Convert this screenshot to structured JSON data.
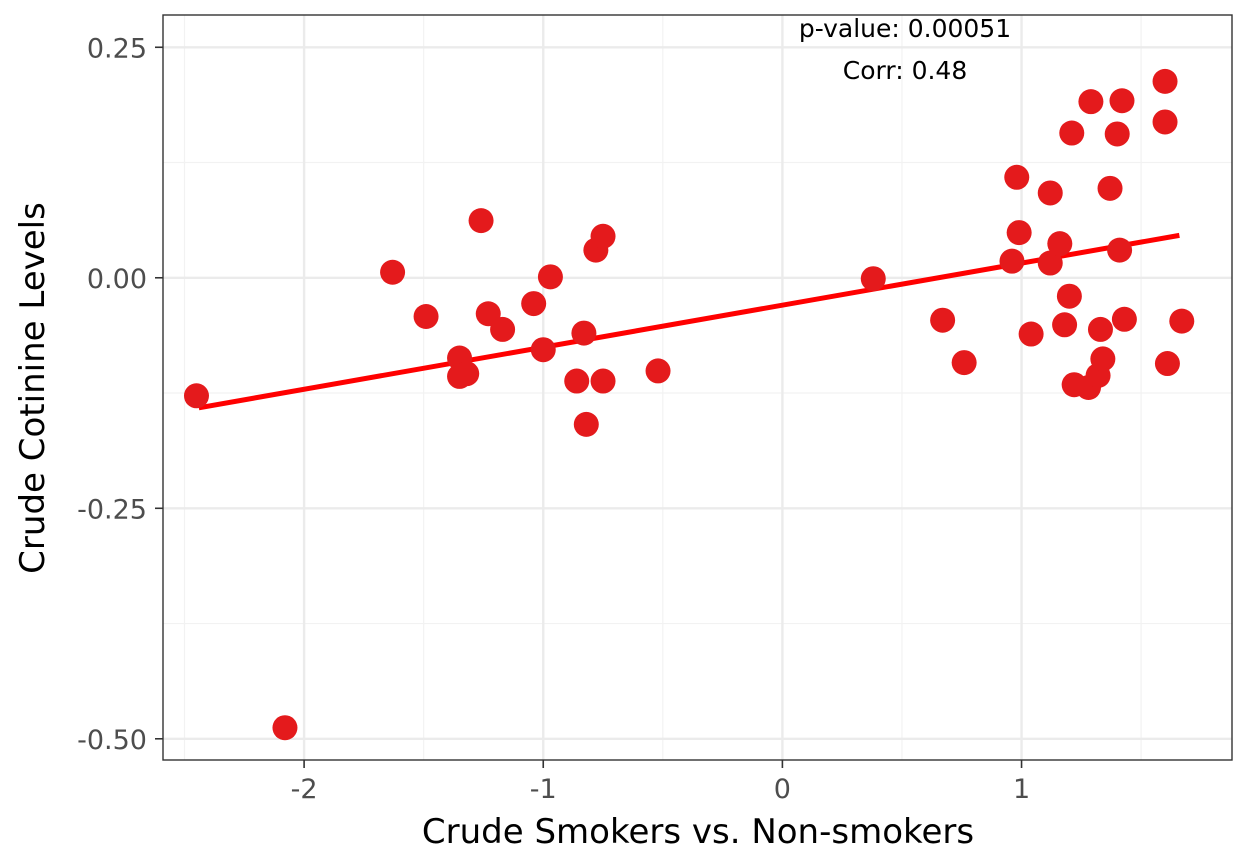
{
  "chart_data": {
    "type": "scatter",
    "title": "",
    "xlabel": "Crude Smokers vs. Non-smokers",
    "ylabel": "Crude Cotinine Levels",
    "xlim": [
      -2.59,
      1.88
    ],
    "ylim": [
      -0.523,
      0.285
    ],
    "x_ticks": [
      -2,
      -1,
      0,
      1
    ],
    "x_tick_labels": [
      "-2",
      "-1",
      "0",
      "1"
    ],
    "y_ticks": [
      0.25,
      0.0,
      -0.25,
      -0.5
    ],
    "y_tick_labels": [
      "0.25",
      "0.00",
      "-0.25",
      "-0.50"
    ],
    "grid": true,
    "legend": "none",
    "point_color": "#e41a1c",
    "line_color": "#ff0000",
    "annotations": {
      "p_value": "p-value: 0.00051",
      "corr": "Corr: 0.48"
    },
    "regression_line": {
      "x": [
        -2.44,
        1.66
      ],
      "y": [
        -0.141,
        0.046
      ]
    },
    "points": [
      {
        "x": -2.45,
        "y": -0.128
      },
      {
        "x": -2.08,
        "y": -0.488
      },
      {
        "x": -1.63,
        "y": 0.006
      },
      {
        "x": -1.49,
        "y": -0.042
      },
      {
        "x": -1.26,
        "y": 0.062
      },
      {
        "x": -1.35,
        "y": -0.087
      },
      {
        "x": -1.35,
        "y": -0.107
      },
      {
        "x": -1.32,
        "y": -0.104
      },
      {
        "x": -1.23,
        "y": -0.039
      },
      {
        "x": -1.17,
        "y": -0.056
      },
      {
        "x": -1.04,
        "y": -0.028
      },
      {
        "x": -1.0,
        "y": -0.078
      },
      {
        "x": -0.97,
        "y": 0.001
      },
      {
        "x": -0.86,
        "y": -0.112
      },
      {
        "x": -0.83,
        "y": -0.06
      },
      {
        "x": -0.82,
        "y": -0.159
      },
      {
        "x": -0.78,
        "y": 0.03
      },
      {
        "x": -0.75,
        "y": 0.045
      },
      {
        "x": -0.75,
        "y": -0.112
      },
      {
        "x": -0.52,
        "y": -0.101
      },
      {
        "x": 0.38,
        "y": -0.001
      },
      {
        "x": 0.67,
        "y": -0.046
      },
      {
        "x": 0.76,
        "y": -0.092
      },
      {
        "x": 0.96,
        "y": 0.018
      },
      {
        "x": 0.98,
        "y": 0.109
      },
      {
        "x": 0.99,
        "y": 0.049
      },
      {
        "x": 1.04,
        "y": -0.061
      },
      {
        "x": 1.12,
        "y": 0.016
      },
      {
        "x": 1.12,
        "y": 0.092
      },
      {
        "x": 1.16,
        "y": 0.037
      },
      {
        "x": 1.18,
        "y": -0.051
      },
      {
        "x": 1.2,
        "y": -0.02
      },
      {
        "x": 1.21,
        "y": 0.157
      },
      {
        "x": 1.22,
        "y": -0.116
      },
      {
        "x": 1.28,
        "y": -0.119
      },
      {
        "x": 1.29,
        "y": 0.191
      },
      {
        "x": 1.32,
        "y": -0.106
      },
      {
        "x": 1.33,
        "y": -0.056
      },
      {
        "x": 1.34,
        "y": -0.088
      },
      {
        "x": 1.37,
        "y": 0.097
      },
      {
        "x": 1.4,
        "y": 0.156
      },
      {
        "x": 1.41,
        "y": 0.03
      },
      {
        "x": 1.42,
        "y": 0.192
      },
      {
        "x": 1.43,
        "y": -0.045
      },
      {
        "x": 1.6,
        "y": 0.213
      },
      {
        "x": 1.6,
        "y": 0.169
      },
      {
        "x": 1.61,
        "y": -0.093
      },
      {
        "x": 1.67,
        "y": -0.047
      }
    ]
  }
}
